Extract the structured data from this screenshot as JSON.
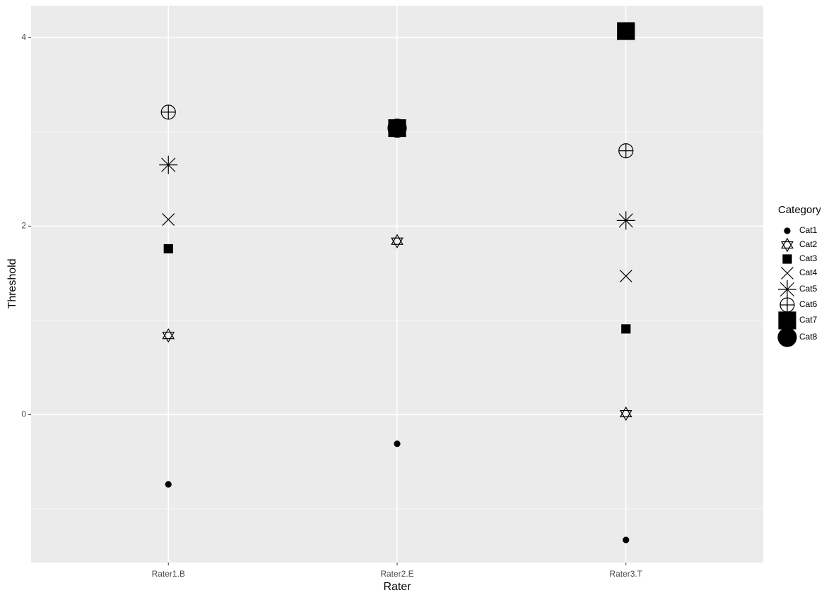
{
  "chart_data": {
    "type": "scatter",
    "x_label": "Rater",
    "y_label": "Threshold",
    "legend_title": "Category",
    "categories": [
      "Rater1.B",
      "Rater2.E",
      "Rater3.T"
    ],
    "ylim": [
      -1.57,
      4.34
    ],
    "yticks": [
      0,
      2,
      4
    ],
    "yminorticks": [
      -1,
      1,
      3
    ],
    "grid": true,
    "legend": "right",
    "series": [
      {
        "name": "Cat1",
        "color": "#000000",
        "marker": "dot",
        "values": [
          -0.74,
          -0.31,
          -1.33
        ]
      },
      {
        "name": "Cat2",
        "color": "#000000",
        "marker": "star",
        "values": [
          0.84,
          1.84,
          0.01
        ]
      },
      {
        "name": "Cat3",
        "color": "#000000",
        "marker": "square",
        "values": [
          1.76,
          null,
          0.91
        ]
      },
      {
        "name": "Cat4",
        "color": "#000000",
        "marker": "cross",
        "values": [
          2.07,
          null,
          1.47
        ]
      },
      {
        "name": "Cat5",
        "color": "#000000",
        "marker": "asterisk",
        "values": [
          2.65,
          null,
          2.06
        ]
      },
      {
        "name": "Cat6",
        "color": "#000000",
        "marker": "circleplus",
        "values": [
          3.21,
          null,
          2.8
        ]
      },
      {
        "name": "Cat7",
        "color": "#000000",
        "marker": "bigsquare",
        "values": [
          null,
          3.04,
          4.07
        ]
      },
      {
        "name": "Cat8",
        "color": "#000000",
        "marker": "bigcircle",
        "values": [
          null,
          3.04,
          null
        ]
      }
    ]
  }
}
